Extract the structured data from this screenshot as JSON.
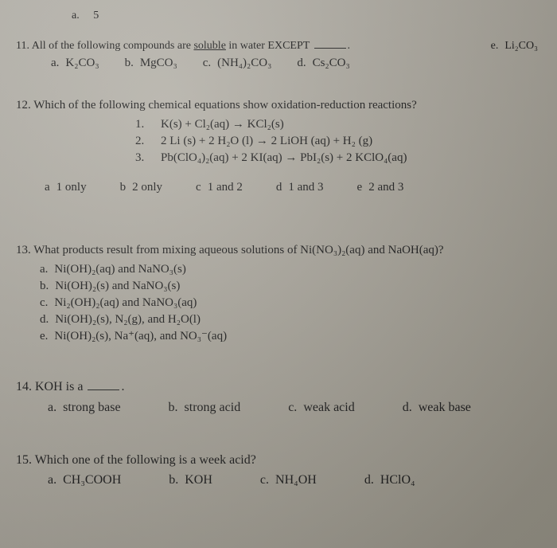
{
  "topFragment": {
    "a": "a.",
    "val": "5"
  },
  "q11": {
    "num": "11.",
    "stemL": "All of the following compounds are ",
    "soluble": "soluble",
    "stemR": " in water EXCEPT ",
    "period": ".",
    "opts": {
      "a": {
        "l": "a.",
        "t": "K₂CO₃"
      },
      "b": {
        "l": "b.",
        "t": "MgCO₃"
      },
      "c": {
        "l": "c.",
        "t": "(NH₄)₂CO₃"
      },
      "d": {
        "l": "d.",
        "t": "Cs₂CO₃"
      },
      "e": {
        "l": "e.",
        "t": "Li₂CO₃"
      }
    }
  },
  "q12": {
    "num": "12.",
    "stem": "Which of the following chemical equations show oxidation-reduction reactions?",
    "eqs": {
      "1": {
        "n": "1.",
        "t": "K(s) + Cl₂(aq) → KCl₂(s)"
      },
      "2": {
        "n": "2.",
        "t": "2 Li (s) + 2 H₂O (l)  →  2 LiOH (aq) + H₂ (g)"
      },
      "3": {
        "n": "3.",
        "t": "Pb(ClO₄)₂(aq) + 2 KI(aq) → PbI₂(s) + 2 KClO₄(aq)"
      }
    },
    "opts": {
      "a": {
        "l": "a",
        "t": "1 only"
      },
      "b": {
        "l": "b",
        "t": "2 only"
      },
      "c": {
        "l": "c",
        "t": "1 and 2"
      },
      "d": {
        "l": "d",
        "t": "1 and 3"
      },
      "e": {
        "l": "e",
        "t": "2 and 3"
      }
    }
  },
  "q13": {
    "num": "13.",
    "stem": "What products result from mixing aqueous solutions of Ni(NO₃)₂(aq) and NaOH(aq)?",
    "opts": {
      "a": {
        "l": "a.",
        "t": "Ni(OH)₂(aq) and NaNO₃(s)"
      },
      "b": {
        "l": "b.",
        "t": "Ni(OH)₂(s) and NaNO₃(s)"
      },
      "c": {
        "l": "c.",
        "t": "Ni₂(OH)₂(aq) and NaNO₃(aq)"
      },
      "d": {
        "l": "d.",
        "t": "Ni(OH)₂(s), N₂(g), and H₂O(l)"
      },
      "e": {
        "l": "e.",
        "t": "Ni(OH)₂(s), Na⁺(aq), and NO₃⁻(aq)"
      }
    }
  },
  "q14": {
    "num": "14.",
    "stemL": "KOH is a ",
    "period": ".",
    "opts": {
      "a": {
        "l": "a.",
        "t": "strong base"
      },
      "b": {
        "l": "b.",
        "t": "strong acid"
      },
      "c": {
        "l": "c.",
        "t": "weak acid"
      },
      "d": {
        "l": "d.",
        "t": "weak base"
      }
    }
  },
  "q15": {
    "num": "15.",
    "stem": "Which one of the following is a week acid?",
    "opts": {
      "a": {
        "l": "a.",
        "t": "CH₃COOH"
      },
      "b": {
        "l": "b.",
        "t": "KOH"
      },
      "c": {
        "l": "c.",
        "t": "NH₄OH"
      },
      "d": {
        "l": "d.",
        "t": "HClO₄"
      }
    }
  }
}
